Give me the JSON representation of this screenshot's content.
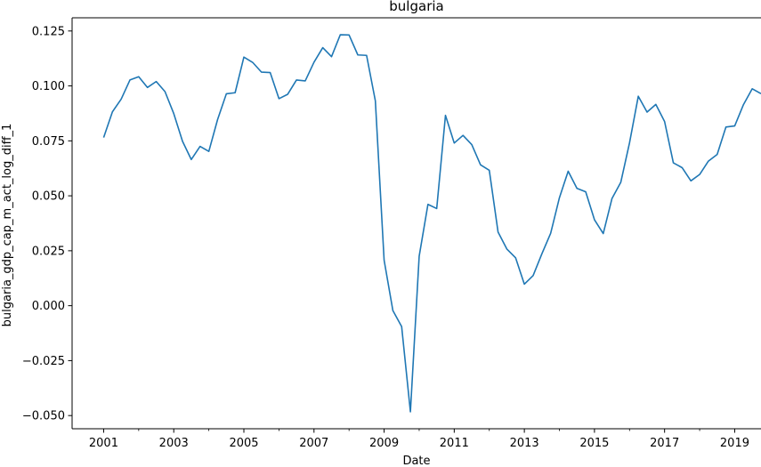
{
  "chart_data": {
    "type": "line",
    "title": "bulgaria",
    "xlabel": "Date",
    "ylabel": "bulgaria_gdp_cap_m_act_log_diff_1",
    "xlim": [
      2000.1,
      2019.75
    ],
    "ylim": [
      -0.056,
      0.131
    ],
    "x_ticks": [
      2001,
      2003,
      2005,
      2007,
      2009,
      2011,
      2013,
      2015,
      2017,
      2019
    ],
    "x_tick_labels": [
      "2001",
      "2003",
      "2005",
      "2007",
      "2009",
      "2011",
      "2013",
      "2015",
      "2017",
      "2019"
    ],
    "y_ticks": [
      -0.05,
      -0.025,
      0.0,
      0.025,
      0.05,
      0.075,
      0.1,
      0.125
    ],
    "y_tick_labels": [
      "−0.050",
      "−0.025",
      "0.000",
      "0.025",
      "0.050",
      "0.075",
      "0.100",
      "0.125"
    ],
    "grid": false,
    "legend": "none",
    "line_color": "#1f77b4",
    "series": [
      {
        "x": [
          2001.0,
          2001.25,
          2001.5,
          2001.75,
          2002.0,
          2002.25,
          2002.5,
          2002.75,
          2003.0,
          2003.25,
          2003.5,
          2003.75,
          2004.0,
          2004.25,
          2004.5,
          2004.75,
          2005.0,
          2005.25,
          2005.5,
          2005.75,
          2006.0,
          2006.25,
          2006.5,
          2006.75,
          2007.0,
          2007.25,
          2007.5,
          2007.75,
          2008.0,
          2008.25,
          2008.5,
          2008.75,
          2009.0,
          2009.25,
          2009.5,
          2009.75,
          2010.0,
          2010.25,
          2010.5,
          2010.75,
          2011.0,
          2011.25,
          2011.5,
          2011.75,
          2012.0,
          2012.25,
          2012.5,
          2012.75,
          2013.0,
          2013.25,
          2013.5,
          2013.75,
          2014.0,
          2014.25,
          2014.5,
          2014.75,
          2015.0,
          2015.25,
          2015.5,
          2015.75,
          2016.0,
          2016.25,
          2016.5,
          2016.75,
          2017.0,
          2017.25,
          2017.5,
          2017.75,
          2018.0,
          2018.25,
          2018.5,
          2018.75,
          2019.0,
          2019.25,
          2019.5,
          2019.75
        ],
        "y": [
          0.0765,
          0.0882,
          0.094,
          0.1027,
          0.1042,
          0.0993,
          0.102,
          0.0974,
          0.0874,
          0.0748,
          0.0665,
          0.0725,
          0.0702,
          0.0847,
          0.0964,
          0.0969,
          0.1131,
          0.1107,
          0.1063,
          0.1061,
          0.0942,
          0.0962,
          0.1027,
          0.1023,
          0.1108,
          0.1174,
          0.1133,
          0.1233,
          0.1232,
          0.1141,
          0.1139,
          0.0932,
          0.0207,
          -0.0022,
          -0.0095,
          -0.0483,
          0.0225,
          0.0461,
          0.0442,
          0.0866,
          0.074,
          0.0775,
          0.0733,
          0.0641,
          0.0616,
          0.0335,
          0.0258,
          0.0218,
          0.0098,
          0.0137,
          0.0236,
          0.0329,
          0.0491,
          0.0612,
          0.0534,
          0.0518,
          0.0391,
          0.0328,
          0.0488,
          0.0561,
          0.0741,
          0.0953,
          0.0881,
          0.0916,
          0.0838,
          0.065,
          0.0628,
          0.0568,
          0.0597,
          0.0658,
          0.0688,
          0.0813,
          0.0818,
          0.0915,
          0.0987,
          0.0965
        ]
      }
    ]
  }
}
